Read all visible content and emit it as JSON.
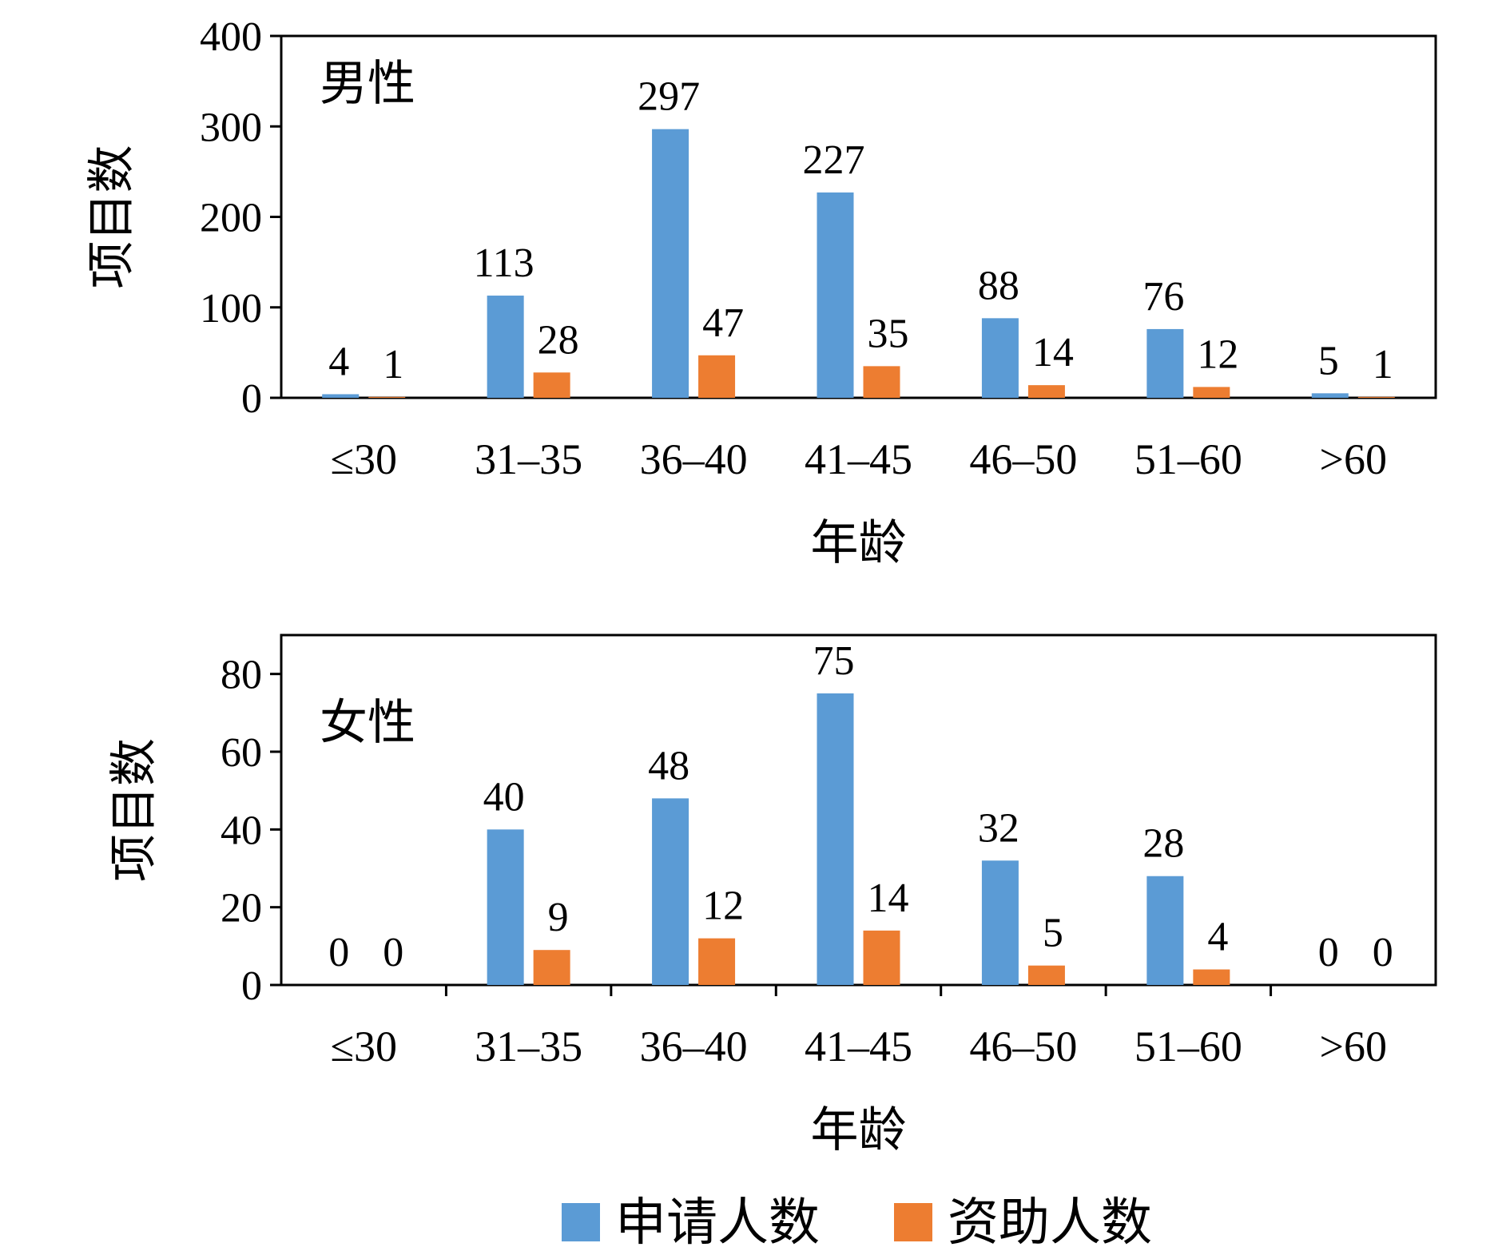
{
  "chart_data": [
    {
      "type": "bar",
      "title": "男性",
      "ylabel": "项目数",
      "xlabel": "年龄",
      "ylim": [
        0,
        400
      ],
      "yticks": [
        0,
        100,
        200,
        300,
        400
      ],
      "categories": [
        "≤30",
        "31–35",
        "36–40",
        "41–45",
        "46–50",
        "51–60",
        ">60"
      ],
      "series": [
        {
          "name": "申请人数",
          "color": "#5B9BD5",
          "values": [
            4,
            113,
            297,
            227,
            88,
            76,
            5
          ]
        },
        {
          "name": "资助人数",
          "color": "#ED7D31",
          "values": [
            1,
            28,
            47,
            35,
            14,
            12,
            1
          ]
        }
      ],
      "grid": false
    },
    {
      "type": "bar",
      "title": "女性",
      "ylabel": "项目数",
      "xlabel": "年龄",
      "ylim": [
        0,
        90
      ],
      "yticks": [
        0,
        20,
        40,
        60,
        80
      ],
      "categories": [
        "≤30",
        "31–35",
        "36–40",
        "41–45",
        "46–50",
        "51–60",
        ">60"
      ],
      "series": [
        {
          "name": "申请人数",
          "color": "#5B9BD5",
          "values": [
            0,
            40,
            48,
            75,
            32,
            28,
            0
          ]
        },
        {
          "name": "资助人数",
          "color": "#ED7D31",
          "values": [
            0,
            9,
            12,
            14,
            5,
            4,
            0
          ]
        }
      ],
      "grid": false
    }
  ],
  "legend": {
    "position": "bottom",
    "items": [
      {
        "name": "申请人数",
        "color": "#5B9BD5"
      },
      {
        "name": "资助人数",
        "color": "#ED7D31"
      }
    ]
  }
}
